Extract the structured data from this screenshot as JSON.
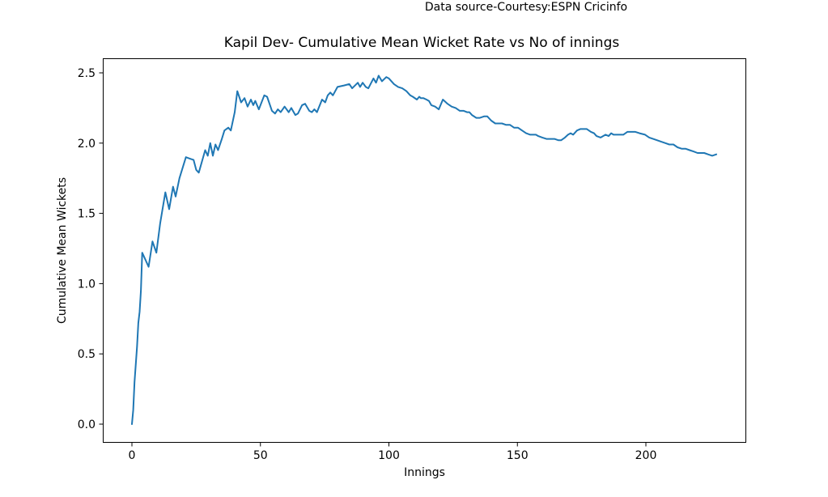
{
  "chart_data": {
    "type": "line",
    "title": "Kapil Dev- Cumulative Mean Wicket Rate vs No of innings",
    "annotation": "Data source-Courtesy:ESPN Cricinfo",
    "xlabel": "Innings",
    "ylabel": "Cumulative Mean Wickets",
    "x_ticks": [
      0,
      50,
      100,
      150,
      200
    ],
    "y_ticks": [
      0.0,
      0.5,
      1.0,
      1.5,
      2.0,
      2.5
    ],
    "xlim": [
      -11.4,
      238.4
    ],
    "ylim": [
      -0.13,
      2.6
    ],
    "grid": false,
    "legend": "none",
    "line_color": "#1f77b4",
    "series": [
      {
        "name": "cumulative mean wickets",
        "points": [
          [
            0,
            0
          ],
          [
            0.5,
            0.1
          ],
          [
            1,
            0.3
          ],
          [
            2,
            0.55
          ],
          [
            2.5,
            0.72
          ],
          [
            3,
            0.8
          ],
          [
            3.5,
            0.95
          ],
          [
            4,
            1.22
          ],
          [
            5,
            1.18
          ],
          [
            6.5,
            1.12
          ],
          [
            8,
            1.3
          ],
          [
            9.5,
            1.22
          ],
          [
            11,
            1.43
          ],
          [
            13,
            1.65
          ],
          [
            14.5,
            1.53
          ],
          [
            16,
            1.69
          ],
          [
            17,
            1.62
          ],
          [
            18.5,
            1.75
          ],
          [
            20,
            1.84
          ],
          [
            21,
            1.9
          ],
          [
            22.5,
            1.89
          ],
          [
            24,
            1.88
          ],
          [
            25,
            1.81
          ],
          [
            26,
            1.79
          ],
          [
            28.5,
            1.95
          ],
          [
            29.5,
            1.91
          ],
          [
            30.5,
            2.0
          ],
          [
            31.5,
            1.91
          ],
          [
            32.5,
            1.99
          ],
          [
            33.5,
            1.95
          ],
          [
            35,
            2.03
          ],
          [
            36,
            2.09
          ],
          [
            37.5,
            2.11
          ],
          [
            38.5,
            2.09
          ],
          [
            40,
            2.22
          ],
          [
            41,
            2.37
          ],
          [
            42.5,
            2.29
          ],
          [
            43.8,
            2.32
          ],
          [
            45,
            2.26
          ],
          [
            46.3,
            2.31
          ],
          [
            47.2,
            2.27
          ],
          [
            48,
            2.3
          ],
          [
            49.4,
            2.24
          ],
          [
            51.5,
            2.34
          ],
          [
            52.6,
            2.33
          ],
          [
            54.5,
            2.23
          ],
          [
            55.7,
            2.21
          ],
          [
            56.8,
            2.24
          ],
          [
            57.9,
            2.22
          ],
          [
            59.4,
            2.26
          ],
          [
            61,
            2.22
          ],
          [
            62,
            2.25
          ],
          [
            63.6,
            2.2
          ],
          [
            64.6,
            2.21
          ],
          [
            66.2,
            2.27
          ],
          [
            67.4,
            2.28
          ],
          [
            69,
            2.23
          ],
          [
            70,
            2.22
          ],
          [
            71,
            2.24
          ],
          [
            72,
            2.22
          ],
          [
            74,
            2.31
          ],
          [
            75.2,
            2.29
          ],
          [
            76.2,
            2.34
          ],
          [
            77.2,
            2.36
          ],
          [
            78.2,
            2.34
          ],
          [
            80,
            2.4
          ],
          [
            82.5,
            2.41
          ],
          [
            84.6,
            2.42
          ],
          [
            85.7,
            2.39
          ],
          [
            87.9,
            2.43
          ],
          [
            88.8,
            2.4
          ],
          [
            89.8,
            2.43
          ],
          [
            91,
            2.4
          ],
          [
            92,
            2.39
          ],
          [
            94,
            2.46
          ],
          [
            95,
            2.43
          ],
          [
            96,
            2.48
          ],
          [
            97.3,
            2.44
          ],
          [
            99,
            2.47
          ],
          [
            100,
            2.46
          ],
          [
            102,
            2.42
          ],
          [
            103.6,
            2.4
          ],
          [
            105.2,
            2.39
          ],
          [
            106.8,
            2.37
          ],
          [
            108.3,
            2.34
          ],
          [
            109.3,
            2.33
          ],
          [
            110.9,
            2.31
          ],
          [
            111.8,
            2.33
          ],
          [
            112.4,
            2.32
          ],
          [
            113.4,
            2.32
          ],
          [
            114.6,
            2.31
          ],
          [
            115.6,
            2.3
          ],
          [
            116.5,
            2.27
          ],
          [
            118,
            2.26
          ],
          [
            119.4,
            2.24
          ],
          [
            121,
            2.31
          ],
          [
            122.8,
            2.28
          ],
          [
            124.4,
            2.26
          ],
          [
            126,
            2.25
          ],
          [
            127.6,
            2.23
          ],
          [
            129.1,
            2.23
          ],
          [
            130.4,
            2.22
          ],
          [
            131.3,
            2.22
          ],
          [
            132.3,
            2.2
          ],
          [
            134,
            2.18
          ],
          [
            135.4,
            2.18
          ],
          [
            137,
            2.19
          ],
          [
            138.3,
            2.19
          ],
          [
            139.8,
            2.16
          ],
          [
            141.4,
            2.14
          ],
          [
            143,
            2.14
          ],
          [
            144,
            2.14
          ],
          [
            145.5,
            2.13
          ],
          [
            147.1,
            2.13
          ],
          [
            148.7,
            2.11
          ],
          [
            150.2,
            2.11
          ],
          [
            151.8,
            2.09
          ],
          [
            153.4,
            2.07
          ],
          [
            155,
            2.06
          ],
          [
            156,
            2.06
          ],
          [
            157.2,
            2.06
          ],
          [
            158.1,
            2.05
          ],
          [
            159.7,
            2.04
          ],
          [
            161.3,
            2.03
          ],
          [
            162.8,
            2.03
          ],
          [
            164.4,
            2.03
          ],
          [
            166,
            2.02
          ],
          [
            167,
            2.02
          ],
          [
            168.5,
            2.04
          ],
          [
            169.7,
            2.06
          ],
          [
            170.7,
            2.07
          ],
          [
            171.7,
            2.06
          ],
          [
            173.2,
            2.09
          ],
          [
            174.5,
            2.1
          ],
          [
            176,
            2.1
          ],
          [
            177,
            2.1
          ],
          [
            178.6,
            2.08
          ],
          [
            179.8,
            2.07
          ],
          [
            180.8,
            2.05
          ],
          [
            182.4,
            2.04
          ],
          [
            184.3,
            2.06
          ],
          [
            185.5,
            2.05
          ],
          [
            186.5,
            2.07
          ],
          [
            187.4,
            2.06
          ],
          [
            188.7,
            2.06
          ],
          [
            190.2,
            2.06
          ],
          [
            191.2,
            2.06
          ],
          [
            192.8,
            2.08
          ],
          [
            194.3,
            2.08
          ],
          [
            195.9,
            2.08
          ],
          [
            197.5,
            2.07
          ],
          [
            199.7,
            2.06
          ],
          [
            201.3,
            2.04
          ],
          [
            202.8,
            2.03
          ],
          [
            204.4,
            2.02
          ],
          [
            206,
            2.01
          ],
          [
            207.6,
            2.0
          ],
          [
            209.1,
            1.99
          ],
          [
            210.7,
            1.99
          ],
          [
            212.3,
            1.97
          ],
          [
            213.9,
            1.96
          ],
          [
            215.4,
            1.96
          ],
          [
            217,
            1.95
          ],
          [
            218.6,
            1.94
          ],
          [
            220.1,
            1.93
          ],
          [
            221.7,
            1.93
          ],
          [
            222.7,
            1.93
          ],
          [
            224.2,
            1.92
          ],
          [
            225.8,
            1.91
          ],
          [
            227.4,
            1.92
          ]
        ]
      }
    ]
  }
}
